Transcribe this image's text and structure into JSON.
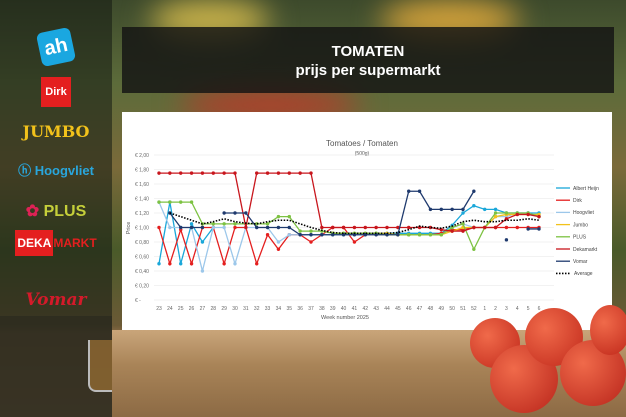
{
  "header": {
    "title": "TOMATEN",
    "subtitle": "prijs per supermarkt"
  },
  "logos": [
    "AH",
    "Dirk",
    "JUMBO",
    "Hoogvliet",
    "PLUS",
    "DEKAMARKT",
    "Vomar"
  ],
  "chart_data": {
    "type": "line",
    "title": "Tomatoes / Tomaten",
    "subtitle": "(500g)",
    "xlabel": "Week number 2025",
    "ylabel": "Price",
    "ylim": [
      0,
      2.0
    ],
    "yticks": [
      "€ -",
      "€ 0,20",
      "€ 0,40",
      "€ 0,60",
      "€ 0,80",
      "€ 1,00",
      "€ 1,20",
      "€ 1,40",
      "€ 1,60",
      "€ 1,80",
      "€ 2,00"
    ],
    "grid": true,
    "legend": "right",
    "categories": [
      "23",
      "24",
      "25",
      "26",
      "27",
      "28",
      "29",
      "30",
      "31",
      "32",
      "33",
      "34",
      "35",
      "36",
      "37",
      "38",
      "39",
      "40",
      "41",
      "42",
      "43",
      "44",
      "45",
      "46",
      "47",
      "48",
      "49",
      "50",
      "51",
      "52",
      "1",
      "2",
      "3",
      "4",
      "5",
      "6"
    ],
    "series": [
      {
        "name": "Albert Heijn",
        "color": "#1aa7d9",
        "values": [
          0.5,
          1.35,
          0.5,
          1.05,
          0.8,
          1.0,
          null,
          null,
          null,
          null,
          null,
          null,
          null,
          0.9,
          0.9,
          0.9,
          0.9,
          0.9,
          0.9,
          0.9,
          0.92,
          0.92,
          0.92,
          0.92,
          0.92,
          0.92,
          0.92,
          1.03,
          1.2,
          1.3,
          1.25,
          1.25,
          1.2,
          1.2,
          1.2,
          1.2
        ]
      },
      {
        "name": "Dirk",
        "color": "#e41f1f",
        "values": [
          1.0,
          0.5,
          0.97,
          0.5,
          1.0,
          1.0,
          0.5,
          1.0,
          1.0,
          0.5,
          0.9,
          0.7,
          0.9,
          0.9,
          0.8,
          0.9,
          1.0,
          1.0,
          0.8,
          0.9,
          0.9,
          0.9,
          0.9,
          0.9,
          0.9,
          0.9,
          0.92,
          0.97,
          0.97,
          1.0,
          1.0,
          1.0,
          1.0,
          1.0,
          1.0,
          1.0
        ]
      },
      {
        "name": "Hoogvliet",
        "color": "#9cc7ea",
        "values": [
          1.35,
          1.0,
          1.0,
          1.0,
          0.4,
          1.0,
          1.0,
          0.5,
          1.0,
          1.0,
          1.0,
          0.8,
          0.9,
          0.9,
          0.9,
          0.9,
          0.9,
          0.9,
          0.9,
          0.9,
          0.9,
          0.9,
          0.9,
          0.9,
          0.9,
          0.9,
          0.9,
          1.0,
          1.05,
          1.0,
          1.0,
          1.15,
          1.15,
          1.2,
          1.2,
          1.15
        ]
      },
      {
        "name": "Jumbo",
        "color": "#f2c21b",
        "values": [
          null,
          null,
          null,
          null,
          null,
          null,
          null,
          null,
          null,
          null,
          null,
          null,
          null,
          null,
          null,
          null,
          0.92,
          0.92,
          0.92,
          0.92,
          0.92,
          0.92,
          0.9,
          0.9,
          0.9,
          0.9,
          0.9,
          0.95,
          1.0,
          1.0,
          1.0,
          1.15,
          1.18,
          1.18,
          1.18,
          1.18
        ]
      },
      {
        "name": "PLUS",
        "color": "#7dc242",
        "values": [
          1.35,
          1.35,
          1.35,
          1.35,
          1.05,
          1.05,
          1.05,
          1.05,
          1.05,
          1.05,
          1.05,
          1.15,
          1.15,
          0.95,
          0.95,
          0.95,
          0.92,
          0.92,
          0.92,
          0.92,
          0.92,
          0.9,
          0.9,
          0.9,
          0.9,
          0.9,
          0.9,
          1.0,
          1.05,
          0.7,
          1.0,
          1.2,
          1.2,
          1.2,
          1.2,
          1.15
        ]
      },
      {
        "name": "Dekamarkt",
        "color": "#c8161d",
        "values": [
          1.75,
          1.75,
          1.75,
          1.75,
          1.75,
          1.75,
          1.75,
          1.75,
          1.0,
          1.75,
          1.75,
          1.75,
          1.75,
          1.75,
          1.75,
          1.0,
          1.0,
          1.0,
          1.0,
          1.0,
          1.0,
          1.0,
          1.0,
          1.0,
          1.0,
          1.0,
          0.97,
          0.95,
          0.95,
          1.0,
          1.0,
          1.0,
          1.12,
          1.18,
          1.18,
          1.15
        ]
      },
      {
        "name": "Vomar",
        "color": "#1f3a6e",
        "values": [
          null,
          1.2,
          1.0,
          1.0,
          1.0,
          null,
          1.2,
          1.2,
          1.2,
          1.0,
          1.0,
          1.0,
          1.0,
          0.9,
          0.9,
          0.9,
          0.9,
          0.9,
          0.9,
          0.9,
          0.9,
          0.9,
          0.9,
          1.5,
          1.5,
          1.25,
          1.25,
          1.25,
          1.25,
          1.5,
          null,
          null,
          0.83,
          null,
          0.98,
          0.98
        ]
      },
      {
        "name": "Average",
        "color": "#000000",
        "dashed": true,
        "values": [
          null,
          1.2,
          1.15,
          1.1,
          1.05,
          1.08,
          1.12,
          1.08,
          1.06,
          1.05,
          1.08,
          1.1,
          1.1,
          1.05,
          1.0,
          0.96,
          0.93,
          0.92,
          0.92,
          0.92,
          0.92,
          0.92,
          0.93,
          0.97,
          1.02,
          1.0,
          0.99,
          1.02,
          1.08,
          1.1,
          1.08,
          1.08,
          1.1,
          1.1,
          1.12,
          1.1
        ]
      }
    ]
  }
}
